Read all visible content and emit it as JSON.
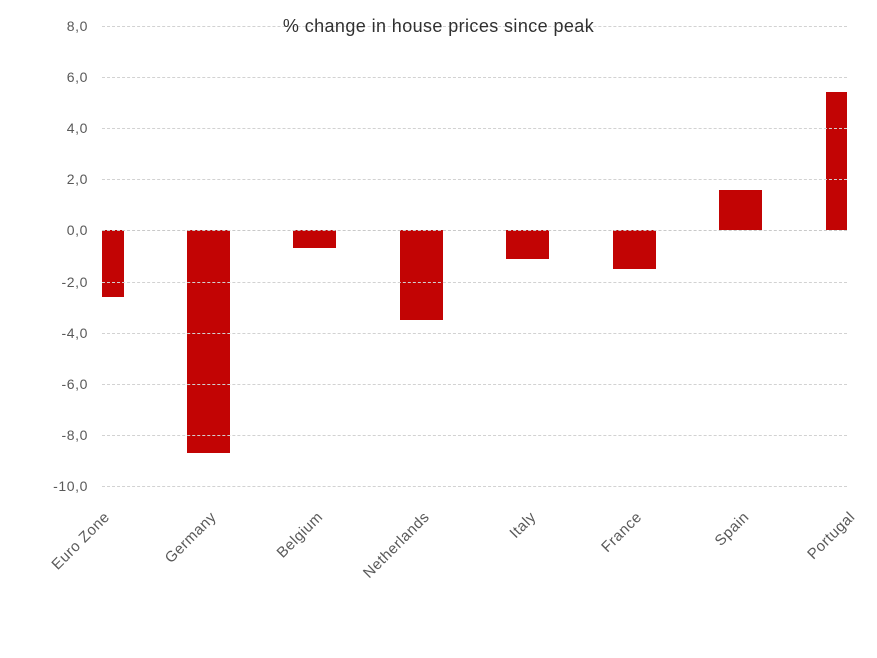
{
  "chart_data": {
    "type": "bar",
    "title": "% change in house prices since peak",
    "categories": [
      "Euro Zone",
      "Germany",
      "Belgium",
      "Netherlands",
      "Italy",
      "France",
      "Spain",
      "Portugal"
    ],
    "values": [
      -2.6,
      -8.7,
      -0.7,
      -3.5,
      -1.1,
      -1.5,
      1.6,
      5.4
    ],
    "ylim": [
      -10,
      8
    ],
    "ytick_step": 2,
    "ytick_labels": [
      "8,0",
      "6,0",
      "4,0",
      "2,0",
      "0,0",
      "-2,0",
      "-4,0",
      "-6,0",
      "-8,0",
      "-10,0"
    ],
    "decimal_separator": ",",
    "grid": true,
    "legend": "none",
    "bar_color": "#c20404",
    "grid_color": "#d2d2d2",
    "tick_label_color": "#595959",
    "title_color": "#303030"
  }
}
